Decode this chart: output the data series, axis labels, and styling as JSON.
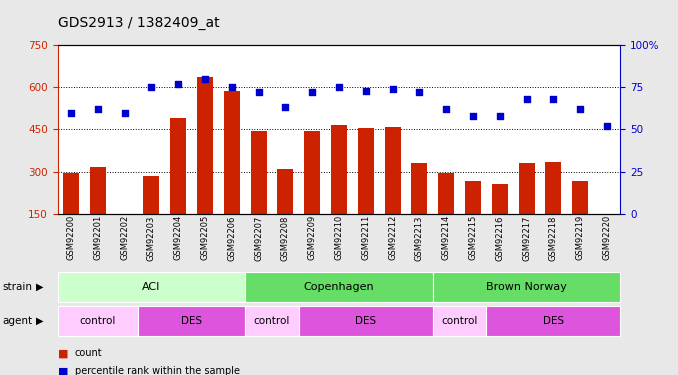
{
  "title": "GDS2913 / 1382409_at",
  "samples": [
    "GSM92200",
    "GSM92201",
    "GSM92202",
    "GSM92203",
    "GSM92204",
    "GSM92205",
    "GSM92206",
    "GSM92207",
    "GSM92208",
    "GSM92209",
    "GSM92210",
    "GSM92211",
    "GSM92212",
    "GSM92213",
    "GSM92214",
    "GSM92215",
    "GSM92216",
    "GSM92217",
    "GSM92218",
    "GSM92219",
    "GSM92220"
  ],
  "counts": [
    295,
    315,
    150,
    285,
    490,
    635,
    585,
    445,
    310,
    445,
    465,
    455,
    460,
    330,
    295,
    265,
    255,
    330,
    335,
    265,
    150
  ],
  "percentile_ranks": [
    60,
    62,
    60,
    75,
    77,
    80,
    75,
    72,
    63,
    72,
    75,
    73,
    74,
    72,
    62,
    58,
    58,
    68,
    68,
    62,
    52
  ],
  "ylim_left": [
    150,
    750
  ],
  "ylim_right": [
    0,
    100
  ],
  "yticks_left": [
    150,
    300,
    450,
    600,
    750
  ],
  "yticks_right": [
    0,
    25,
    50,
    75,
    100
  ],
  "ytick_labels_left": [
    "150",
    "300",
    "450",
    "600",
    "750"
  ],
  "ytick_labels_right": [
    "0",
    "25",
    "50",
    "75",
    "100%"
  ],
  "hlines": [
    300,
    450,
    600
  ],
  "bar_color": "#cc2200",
  "dot_color": "#0000cc",
  "strain_data": [
    {
      "label": "ACI",
      "start": 0,
      "end": 7,
      "color": "#ccffcc"
    },
    {
      "label": "Copenhagen",
      "start": 7,
      "end": 14,
      "color": "#66dd66"
    },
    {
      "label": "Brown Norway",
      "start": 14,
      "end": 21,
      "color": "#66dd66"
    }
  ],
  "agent_data": [
    {
      "label": "control",
      "start": 0,
      "end": 3,
      "color": "#ffccff"
    },
    {
      "label": "DES",
      "start": 3,
      "end": 7,
      "color": "#dd55dd"
    },
    {
      "label": "control",
      "start": 7,
      "end": 9,
      "color": "#ffccff"
    },
    {
      "label": "DES",
      "start": 9,
      "end": 14,
      "color": "#dd55dd"
    },
    {
      "label": "control",
      "start": 14,
      "end": 16,
      "color": "#ffccff"
    },
    {
      "label": "DES",
      "start": 16,
      "end": 21,
      "color": "#dd55dd"
    }
  ],
  "strain_label": "strain",
  "agent_label": "agent",
  "background_color": "#e8e8e8",
  "plot_bg": "#ffffff",
  "title_fontsize": 10,
  "axis_color_left": "#cc2200",
  "axis_color_right": "#0000cc"
}
